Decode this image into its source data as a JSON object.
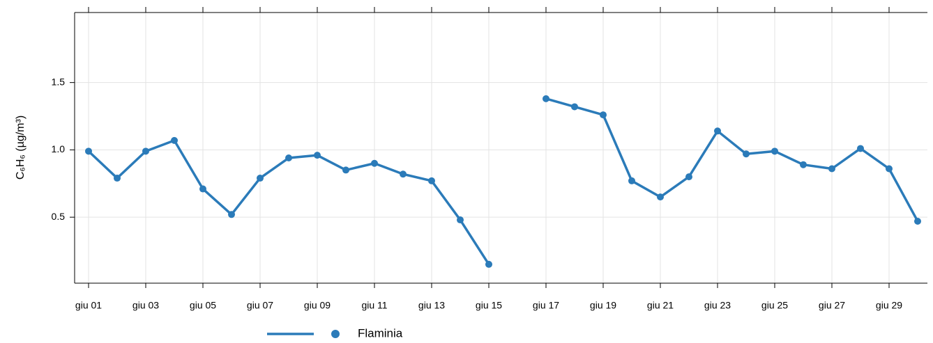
{
  "chart_data": {
    "type": "line",
    "ylabel": "C₆H₆ (µg/m³)",
    "categories": [
      "giu 01",
      null,
      "giu 03",
      null,
      "giu 05",
      null,
      "giu 07",
      null,
      "giu 09",
      null,
      "giu 11",
      null,
      "giu 13",
      null,
      "giu 15",
      null,
      "giu 17",
      null,
      "giu 19",
      null,
      "giu 21",
      null,
      "giu 23",
      null,
      "giu 25",
      null,
      "giu 27",
      null,
      "giu 29",
      null
    ],
    "series": [
      {
        "name": "Flaminia",
        "color": "#2b7bb9",
        "values": [
          0.99,
          0.79,
          0.99,
          1.07,
          0.71,
          0.52,
          0.79,
          0.94,
          0.96,
          0.85,
          0.9,
          0.82,
          0.77,
          0.48,
          0.15,
          null,
          1.38,
          1.32,
          1.26,
          0.77,
          0.65,
          0.8,
          1.14,
          0.97,
          0.99,
          0.89,
          0.86,
          1.01,
          0.86,
          0.47
        ]
      }
    ],
    "ylim": [
      0.01,
      2.02
    ],
    "yticks": [
      0.5,
      {
        "value": 1.0,
        "label": "1.0"
      },
      1.5
    ],
    "grid": true
  }
}
